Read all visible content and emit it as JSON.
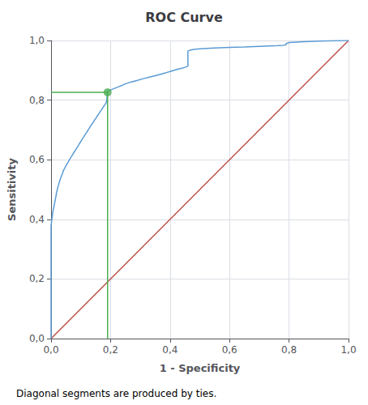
{
  "chart_data": {
    "type": "line",
    "title": "ROC Curve",
    "xlabel": "1 - Specificity",
    "ylabel": "Sensitivity",
    "annotations": [
      "Diagonal segments are produced by ties."
    ],
    "grid": true,
    "xlim": [
      0.0,
      1.0
    ],
    "ylim": [
      0.0,
      1.0
    ],
    "xticks": [
      {
        "value": 0.0,
        "label": "0,0"
      },
      {
        "value": 0.2,
        "label": "0,2"
      },
      {
        "value": 0.4,
        "label": "0,4"
      },
      {
        "value": 0.6,
        "label": "0,6"
      },
      {
        "value": 0.8,
        "label": "0,8"
      },
      {
        "value": 1.0,
        "label": "1,0"
      }
    ],
    "yticks": [
      {
        "value": 0.0,
        "label": "0,0"
      },
      {
        "value": 0.2,
        "label": "0,2"
      },
      {
        "value": 0.4,
        "label": "0,4"
      },
      {
        "value": 0.6,
        "label": "0,6"
      },
      {
        "value": 0.8,
        "label": "0,8"
      },
      {
        "value": 1.0,
        "label": "1,0"
      }
    ],
    "series": [
      {
        "type": "line",
        "color": "#C0504D",
        "x": [
          0,
          1
        ],
        "values": [
          0,
          1
        ]
      },
      {
        "type": "line",
        "color": "#5B9BD5",
        "x": [
          0.0,
          0.0,
          0.002,
          0.004,
          0.006,
          0.008,
          0.01,
          0.012,
          0.014,
          0.016,
          0.018,
          0.018,
          0.02,
          0.022,
          0.024,
          0.026,
          0.028,
          0.03,
          0.032,
          0.034,
          0.036,
          0.038,
          0.04,
          0.04,
          0.042,
          0.044,
          0.046,
          0.048,
          0.05,
          0.052,
          0.055,
          0.058,
          0.06,
          0.063,
          0.066,
          0.07,
          0.073,
          0.076,
          0.08,
          0.083,
          0.086,
          0.09,
          0.093,
          0.096,
          0.1,
          0.103,
          0.106,
          0.11,
          0.113,
          0.116,
          0.12,
          0.123,
          0.126,
          0.13,
          0.133,
          0.136,
          0.14,
          0.143,
          0.146,
          0.15,
          0.153,
          0.156,
          0.16,
          0.163,
          0.166,
          0.17,
          0.173,
          0.176,
          0.18,
          0.183,
          0.186,
          0.19,
          0.19,
          0.2,
          0.21,
          0.22,
          0.23,
          0.24,
          0.25,
          0.27,
          0.29,
          0.31,
          0.33,
          0.35,
          0.37,
          0.38,
          0.39,
          0.4,
          0.41,
          0.42,
          0.43,
          0.44,
          0.45,
          0.455,
          0.46,
          0.46,
          0.47,
          0.48,
          0.5,
          0.55,
          0.6,
          0.65,
          0.7,
          0.75,
          0.78,
          0.79,
          0.79,
          0.8,
          0.85,
          0.9,
          0.95,
          1.0
        ],
        "values": [
          0.0,
          0.38,
          0.395,
          0.41,
          0.425,
          0.435,
          0.445,
          0.455,
          0.465,
          0.475,
          0.485,
          0.49,
          0.495,
          0.505,
          0.512,
          0.518,
          0.525,
          0.532,
          0.538,
          0.543,
          0.548,
          0.553,
          0.557,
          0.562,
          0.565,
          0.568,
          0.572,
          0.576,
          0.579,
          0.583,
          0.588,
          0.593,
          0.597,
          0.602,
          0.607,
          0.613,
          0.618,
          0.623,
          0.629,
          0.634,
          0.639,
          0.645,
          0.65,
          0.655,
          0.661,
          0.666,
          0.671,
          0.677,
          0.682,
          0.687,
          0.692,
          0.697,
          0.702,
          0.708,
          0.713,
          0.718,
          0.723,
          0.728,
          0.733,
          0.738,
          0.743,
          0.748,
          0.753,
          0.758,
          0.763,
          0.768,
          0.773,
          0.778,
          0.783,
          0.788,
          0.793,
          0.826,
          0.83,
          0.834,
          0.838,
          0.842,
          0.846,
          0.85,
          0.855,
          0.861,
          0.866,
          0.872,
          0.877,
          0.882,
          0.887,
          0.89,
          0.893,
          0.896,
          0.899,
          0.902,
          0.905,
          0.907,
          0.91,
          0.912,
          0.914,
          0.965,
          0.968,
          0.97,
          0.972,
          0.975,
          0.977,
          0.978,
          0.98,
          0.982,
          0.984,
          0.986,
          0.99,
          0.993,
          0.996,
          0.998,
          0.999,
          1.0
        ]
      },
      {
        "type": "line",
        "color": "#4CAF50",
        "x": [
          0,
          0.19
        ],
        "values": [
          0.826,
          0.826
        ]
      },
      {
        "type": "line",
        "color": "#4CAF50",
        "x": [
          0.19,
          0.19
        ],
        "values": [
          0,
          0.826
        ]
      },
      {
        "type": "scatter",
        "marker": "circle",
        "color": "#4CAF50",
        "x": [
          0.19
        ],
        "values": [
          0.826
        ]
      }
    ]
  }
}
